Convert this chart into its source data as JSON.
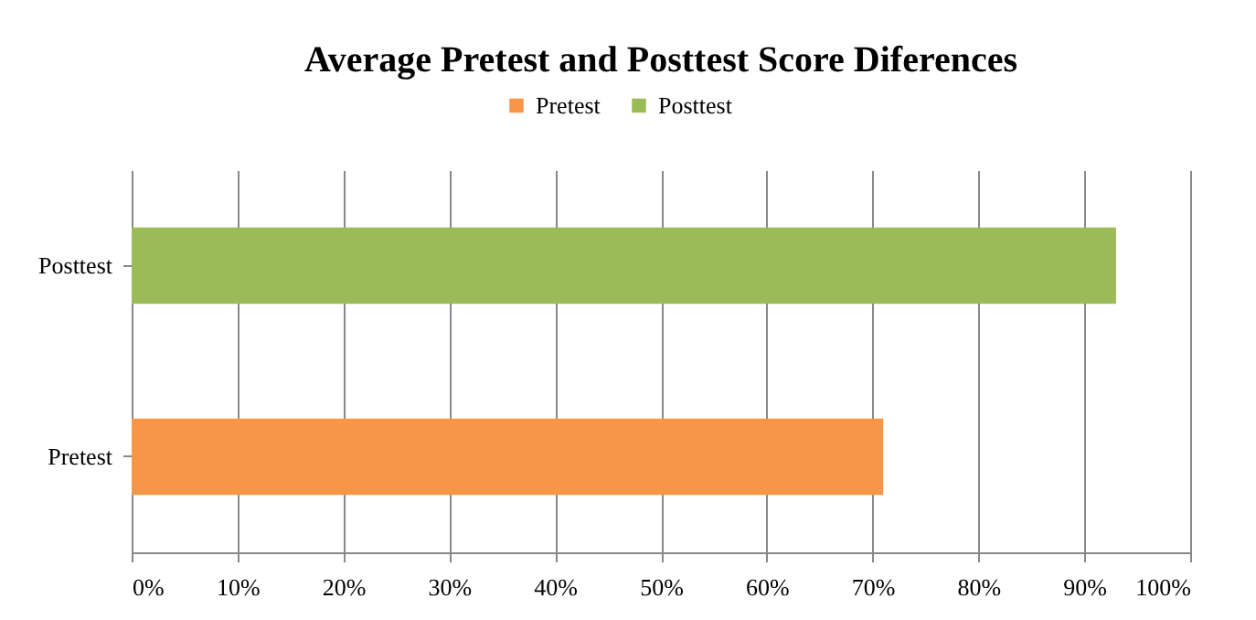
{
  "chart_data": {
    "type": "bar",
    "orientation": "horizontal",
    "title": "Average Pretest and Posttest Score Diferences",
    "categories": [
      "Posttest",
      "Pretest"
    ],
    "series": [
      {
        "name": "Pretest",
        "color": "#f79646",
        "values": [
          null,
          71
        ]
      },
      {
        "name": "Posttest",
        "color": "#9bbb59",
        "values": [
          93,
          null
        ]
      }
    ],
    "xlim": [
      0,
      100
    ],
    "xticks": [
      {
        "value": 0,
        "label": "0%"
      },
      {
        "value": 10,
        "label": "10%"
      },
      {
        "value": 20,
        "label": "20%"
      },
      {
        "value": 30,
        "label": "30%"
      },
      {
        "value": 40,
        "label": "40%"
      },
      {
        "value": 50,
        "label": "50%"
      },
      {
        "value": 60,
        "label": "60%"
      },
      {
        "value": 70,
        "label": "70%"
      },
      {
        "value": 80,
        "label": "80%"
      },
      {
        "value": 90,
        "label": "90%"
      },
      {
        "value": 100,
        "label": "100%"
      }
    ],
    "grid": "x",
    "legend": "top"
  }
}
